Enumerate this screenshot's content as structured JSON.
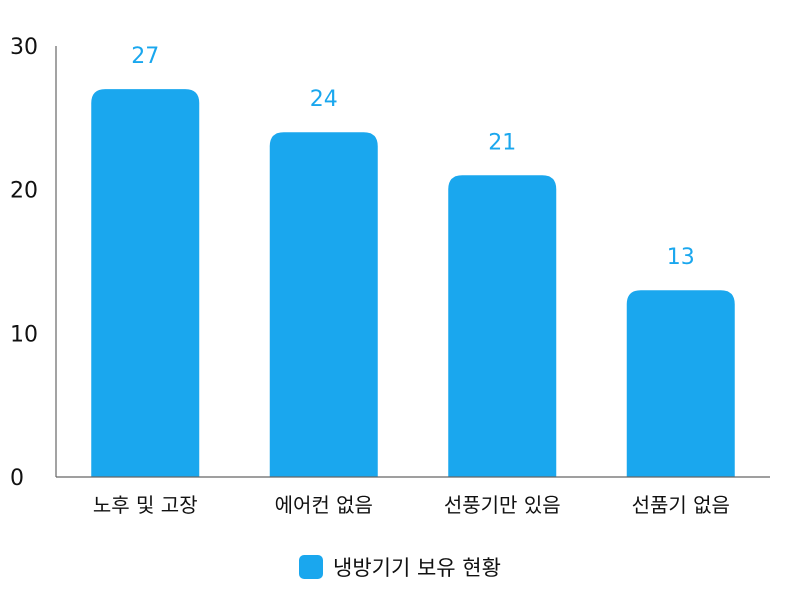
{
  "chart_data": {
    "type": "bar",
    "title": "",
    "xlabel": "",
    "ylabel": "",
    "categories": [
      "노후 및 고장",
      "에어컨 없음",
      "선풍기만 있음",
      "선품기 없음"
    ],
    "series": [
      {
        "name": "냉방기기 보유 현황",
        "values": [
          27,
          24,
          21,
          13
        ],
        "color": "#1aa7ee"
      }
    ],
    "ylim": [
      0,
      30
    ],
    "yticks": [
      0,
      10,
      20,
      30
    ],
    "data_labels": [
      "27",
      "24",
      "21",
      "13"
    ],
    "grid": false,
    "legend_position": "bottom-center",
    "axis_color": "#666666"
  }
}
